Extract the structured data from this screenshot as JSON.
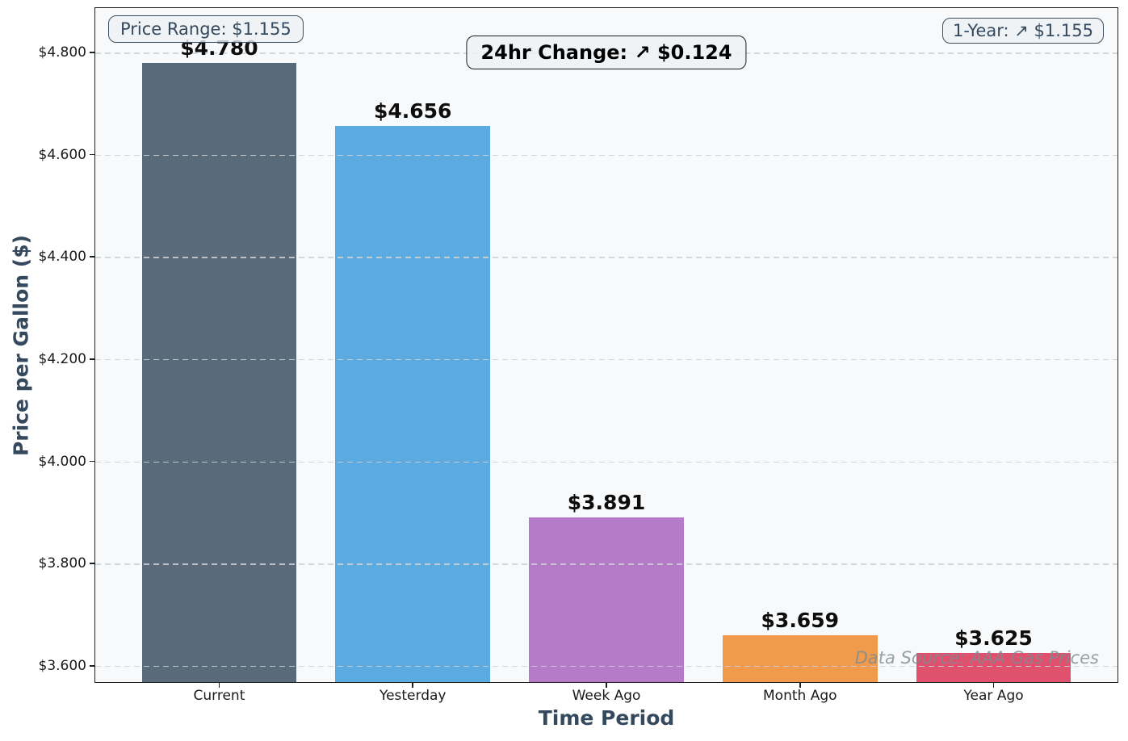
{
  "chart_data": {
    "type": "bar",
    "xlabel": "Time Period",
    "ylabel": "Price per Gallon ($)",
    "categories": [
      "Current",
      "Yesterday",
      "Week Ago",
      "Month Ago",
      "Year Ago"
    ],
    "values": [
      4.78,
      4.656,
      3.891,
      3.659,
      3.625
    ],
    "value_labels": [
      "$4.780",
      "$4.656",
      "$3.891",
      "$3.659",
      "$3.625"
    ],
    "bar_colors": [
      "#596a7a",
      "#5babe0",
      "#b57bc8",
      "#ef9a4d",
      "#e0516e"
    ],
    "yticks": [
      3.6,
      3.8,
      4.0,
      4.2,
      4.4,
      4.6,
      4.8
    ],
    "ytick_labels": [
      "$3.600",
      "$3.800",
      "$4.000",
      "$4.200",
      "$4.400",
      "$4.600",
      "$4.800"
    ],
    "ylim": [
      3.568,
      4.887
    ],
    "xlim": [
      -0.64,
      4.64
    ],
    "bar_width_data_units": 0.8,
    "grid": true,
    "grid_style": "dashed",
    "legend_position": "none",
    "plot_background": "#f8f9fa",
    "annotations": {
      "price_range": "Price Range: $1.155",
      "change_24hr": "24hr Change: ↗ $0.124",
      "one_year": "1-Year: ↗ $1.155",
      "watermark": "Data Source: AAA Gas Prices"
    }
  }
}
